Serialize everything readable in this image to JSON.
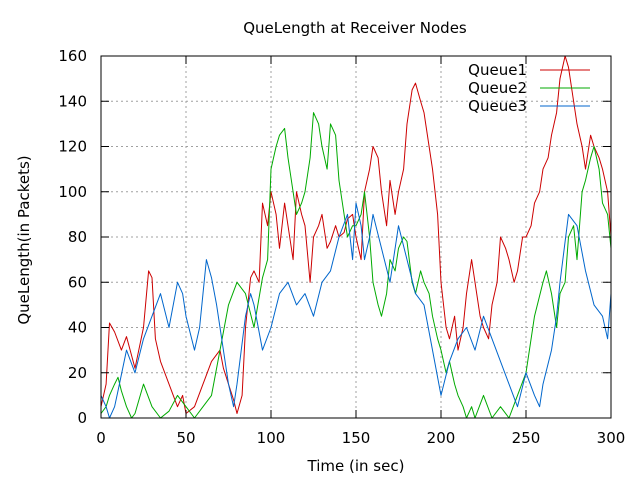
{
  "chart_data": {
    "type": "line",
    "title": "QueLength at Receiver Nodes",
    "xlabel": "Time (in sec)",
    "ylabel": "QueLength(in Packets)",
    "xlim": [
      0,
      300
    ],
    "ylim": [
      0,
      160
    ],
    "xticks": [
      0,
      50,
      100,
      150,
      200,
      250,
      300
    ],
    "yticks": [
      0,
      20,
      40,
      60,
      80,
      100,
      120,
      140,
      160
    ],
    "grid": true,
    "legend_position": "top-right",
    "series": [
      {
        "name": "Queue1",
        "color": "#cc0000",
        "x": [
          0,
          3,
          5,
          8,
          12,
          15,
          20,
          25,
          28,
          30,
          32,
          35,
          40,
          45,
          48,
          50,
          55,
          60,
          65,
          70,
          72,
          75,
          78,
          80,
          83,
          85,
          88,
          90,
          93,
          95,
          98,
          100,
          103,
          105,
          108,
          110,
          113,
          115,
          118,
          120,
          123,
          125,
          128,
          130,
          133,
          135,
          138,
          140,
          143,
          145,
          148,
          150,
          153,
          155,
          158,
          160,
          163,
          165,
          168,
          170,
          173,
          175,
          178,
          180,
          183,
          185,
          188,
          190,
          193,
          195,
          198,
          200,
          203,
          205,
          208,
          210,
          213,
          215,
          218,
          220,
          223,
          225,
          228,
          230,
          233,
          235,
          238,
          240,
          243,
          245,
          248,
          250,
          253,
          255,
          258,
          260,
          263,
          265,
          268,
          270,
          273,
          275,
          278,
          280,
          283,
          285,
          288,
          290,
          293,
          295,
          298,
          300
        ],
        "values": [
          5,
          15,
          42,
          38,
          30,
          36,
          22,
          40,
          65,
          62,
          35,
          25,
          15,
          5,
          10,
          2,
          5,
          15,
          25,
          30,
          22,
          15,
          8,
          2,
          10,
          40,
          62,
          65,
          60,
          95,
          85,
          100,
          90,
          75,
          95,
          85,
          70,
          100,
          90,
          85,
          60,
          80,
          85,
          90,
          75,
          78,
          85,
          80,
          82,
          88,
          90,
          80,
          70,
          100,
          110,
          120,
          115,
          100,
          85,
          105,
          90,
          100,
          110,
          130,
          145,
          148,
          140,
          135,
          120,
          110,
          90,
          60,
          40,
          35,
          45,
          30,
          40,
          55,
          70,
          60,
          45,
          40,
          35,
          50,
          60,
          80,
          75,
          70,
          60,
          65,
          80,
          80,
          85,
          95,
          100,
          110,
          115,
          125,
          135,
          150,
          160,
          155,
          140,
          130,
          120,
          110,
          125,
          120,
          115,
          110,
          100,
          80
        ]
      },
      {
        "name": "Queue2",
        "color": "#00aa00",
        "x": [
          0,
          3,
          5,
          8,
          10,
          12,
          15,
          18,
          20,
          25,
          30,
          35,
          40,
          45,
          50,
          55,
          60,
          65,
          70,
          75,
          80,
          85,
          90,
          95,
          98,
          100,
          103,
          105,
          108,
          110,
          113,
          115,
          118,
          120,
          123,
          125,
          128,
          130,
          133,
          135,
          138,
          140,
          143,
          145,
          148,
          150,
          153,
          155,
          158,
          160,
          163,
          165,
          168,
          170,
          173,
          175,
          178,
          180,
          183,
          185,
          188,
          190,
          193,
          195,
          198,
          200,
          203,
          205,
          208,
          210,
          213,
          215,
          218,
          220,
          225,
          230,
          235,
          240,
          245,
          250,
          255,
          260,
          262,
          265,
          268,
          270,
          273,
          275,
          278,
          280,
          283,
          285,
          288,
          290,
          293,
          295,
          298,
          300
        ],
        "values": [
          2,
          5,
          10,
          15,
          18,
          12,
          5,
          0,
          2,
          15,
          5,
          0,
          3,
          10,
          5,
          0,
          5,
          10,
          30,
          50,
          60,
          55,
          40,
          62,
          70,
          110,
          120,
          125,
          128,
          115,
          100,
          90,
          95,
          100,
          115,
          135,
          130,
          120,
          110,
          130,
          125,
          105,
          90,
          80,
          85,
          85,
          90,
          100,
          80,
          60,
          50,
          45,
          55,
          70,
          65,
          75,
          80,
          78,
          60,
          55,
          65,
          60,
          55,
          45,
          35,
          30,
          20,
          25,
          15,
          10,
          5,
          0,
          5,
          0,
          10,
          0,
          5,
          0,
          10,
          20,
          45,
          60,
          65,
          55,
          40,
          55,
          60,
          80,
          85,
          70,
          100,
          105,
          115,
          120,
          110,
          95,
          90,
          75
        ]
      },
      {
        "name": "Queue3",
        "color": "#0066cc",
        "x": [
          0,
          3,
          5,
          8,
          10,
          15,
          20,
          25,
          30,
          35,
          40,
          45,
          48,
          50,
          55,
          58,
          60,
          62,
          65,
          68,
          70,
          73,
          75,
          78,
          80,
          85,
          88,
          90,
          95,
          100,
          105,
          110,
          115,
          120,
          125,
          130,
          135,
          140,
          145,
          148,
          150,
          153,
          155,
          158,
          160,
          165,
          170,
          175,
          180,
          185,
          190,
          195,
          200,
          205,
          210,
          215,
          220,
          225,
          230,
          235,
          240,
          245,
          250,
          255,
          258,
          260,
          265,
          268,
          270,
          275,
          280,
          285,
          290,
          295,
          298,
          300
        ],
        "values": [
          10,
          5,
          0,
          5,
          12,
          30,
          20,
          35,
          45,
          55,
          40,
          60,
          55,
          45,
          30,
          40,
          55,
          70,
          62,
          50,
          40,
          25,
          15,
          5,
          15,
          45,
          55,
          50,
          30,
          40,
          55,
          60,
          50,
          55,
          45,
          60,
          65,
          80,
          90,
          70,
          95,
          85,
          70,
          80,
          90,
          75,
          60,
          85,
          70,
          55,
          50,
          30,
          10,
          25,
          35,
          40,
          30,
          45,
          35,
          25,
          15,
          5,
          20,
          10,
          5,
          15,
          30,
          45,
          60,
          90,
          85,
          65,
          50,
          45,
          35,
          55
        ]
      }
    ]
  }
}
